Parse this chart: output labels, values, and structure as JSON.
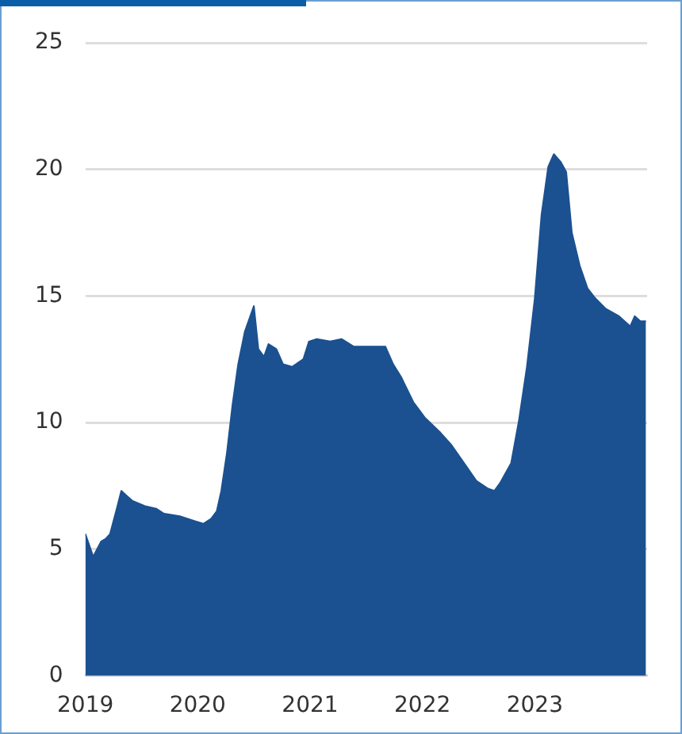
{
  "chart_data": {
    "type": "area",
    "x": [
      2019.0,
      2019.07,
      2019.14,
      2019.18,
      2019.22,
      2019.28,
      2019.32,
      2019.37,
      2019.42,
      2019.53,
      2019.63,
      2019.7,
      2019.84,
      2019.98,
      2020.05,
      2020.12,
      2020.17,
      2020.21,
      2020.26,
      2020.31,
      2020.36,
      2020.42,
      2020.5,
      2020.54,
      2020.59,
      2020.63,
      2020.7,
      2020.76,
      2020.84,
      2020.94,
      2020.99,
      2021.06,
      2021.18,
      2021.28,
      2021.39,
      2021.53,
      2021.67,
      2021.74,
      2021.81,
      2021.92,
      2022.02,
      2022.16,
      2022.26,
      2022.37,
      2022.48,
      2022.58,
      2022.64,
      2022.69,
      2022.79,
      2022.86,
      2022.93,
      2023.0,
      2023.06,
      2023.12,
      2023.17,
      2023.23,
      2023.28,
      2023.33,
      2023.4,
      2023.47,
      2023.54,
      2023.63,
      2023.75,
      2023.85,
      2023.89,
      2023.94,
      2023.99
    ],
    "series": [
      {
        "color": "#1b5190",
        "values": [
          5.6,
          4.7,
          5.3,
          5.4,
          5.6,
          6.6,
          7.3,
          7.1,
          6.9,
          6.7,
          6.6,
          6.4,
          6.3,
          6.1,
          6.0,
          6.2,
          6.5,
          7.3,
          8.8,
          10.7,
          12.3,
          13.6,
          14.6,
          12.9,
          12.6,
          13.1,
          12.9,
          12.3,
          12.2,
          12.5,
          13.2,
          13.3,
          13.2,
          13.3,
          13.0,
          13.0,
          13.0,
          12.3,
          11.8,
          10.8,
          10.2,
          9.6,
          9.1,
          8.4,
          7.7,
          7.4,
          7.3,
          7.6,
          8.4,
          10.1,
          12.2,
          14.9,
          18.2,
          20.1,
          20.6,
          20.3,
          19.9,
          17.5,
          16.2,
          15.3,
          14.9,
          14.5,
          14.2,
          13.8,
          14.2,
          14.0,
          14.0
        ]
      }
    ],
    "xlim": [
      2019,
      2024
    ],
    "xticks": [
      2019,
      2020,
      2021,
      2022,
      2023
    ],
    "ylim": [
      0,
      25
    ],
    "yticks": [
      0,
      5,
      10,
      15,
      20,
      25
    ],
    "grid": "y"
  }
}
